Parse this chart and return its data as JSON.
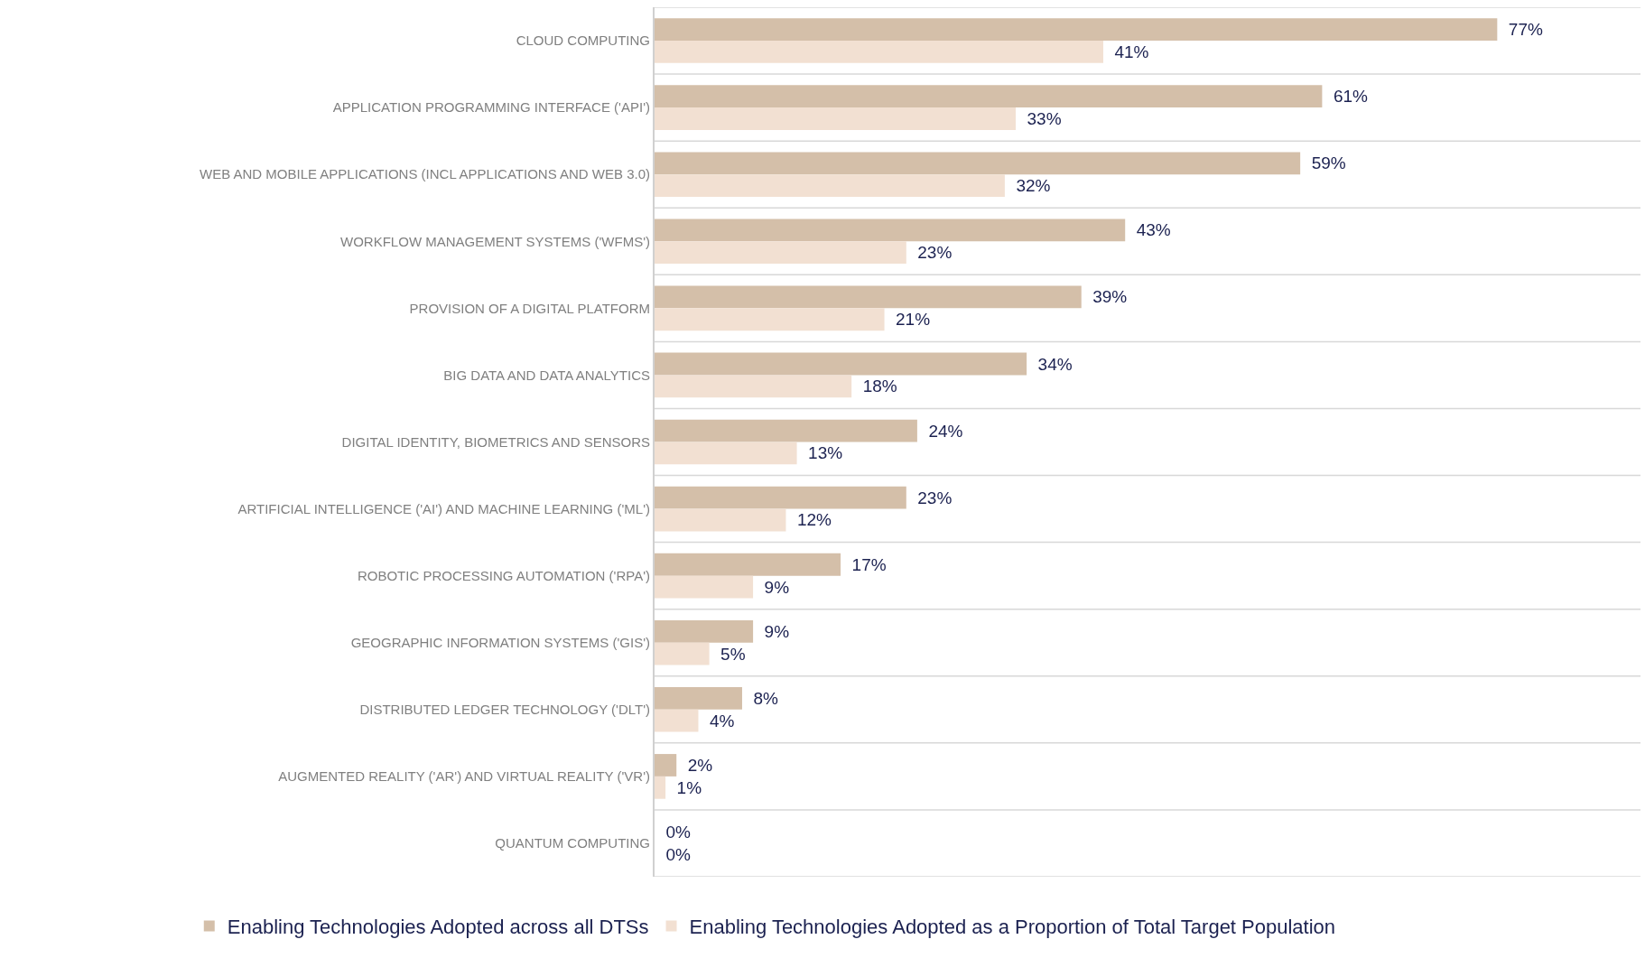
{
  "chart_data": {
    "type": "bar",
    "orientation": "horizontal",
    "grid": "y",
    "legend": "bottom",
    "tick_labels": "y",
    "categories": [
      "CLOUD COMPUTING",
      "APPLICATION PROGRAMMING INTERFACE ('API')",
      "WEB AND MOBILE APPLICATIONS (INCL APPLICATIONS AND WEB 3.0)",
      "WORKFLOW MANAGEMENT SYSTEMS ('WFMS')",
      "PROVISION OF A DIGITAL PLATFORM",
      "BIG DATA AND DATA ANALYTICS",
      "DIGITAL IDENTITY, BIOMETRICS AND SENSORS",
      "ARTIFICIAL INTELLIGENCE ('AI') AND MACHINE LEARNING ('ML')",
      "ROBOTIC PROCESSING AUTOMATION ('RPA')",
      "GEOGRAPHIC INFORMATION SYSTEMS ('GIS')",
      "DISTRIBUTED LEDGER TECHNOLOGY ('DLT')",
      "AUGMENTED REALITY ('AR') AND VIRTUAL REALITY ('VR')",
      "QUANTUM COMPUTING"
    ],
    "series": [
      {
        "name": "Enabling Technologies Adopted across all DTSs",
        "color": "#d4bfa9",
        "values": [
          77,
          61,
          59,
          43,
          39,
          34,
          24,
          23,
          17,
          9,
          8,
          2,
          0
        ],
        "value_labels": [
          "77%",
          "61%",
          "59%",
          "43%",
          "39%",
          "34%",
          "24%",
          "23%",
          "17%",
          "9%",
          "8%",
          "2%",
          "0%"
        ]
      },
      {
        "name": "Enabling Technologies Adopted as a Proportion of Total Target Population",
        "color": "#f2e0d2",
        "values": [
          41,
          33,
          32,
          23,
          21,
          18,
          13,
          12,
          9,
          5,
          4,
          1,
          0
        ],
        "value_labels": [
          "41%",
          "33%",
          "32%",
          "23%",
          "21%",
          "18%",
          "13%",
          "12%",
          "9%",
          "5%",
          "4%",
          "1%",
          "0%"
        ]
      }
    ]
  }
}
